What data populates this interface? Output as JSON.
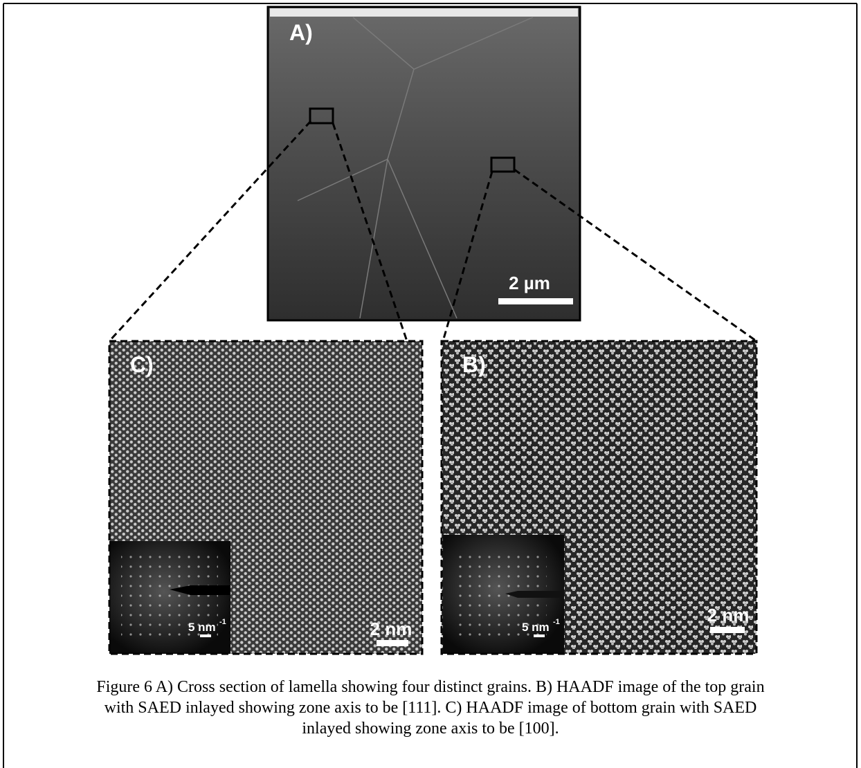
{
  "figure": {
    "panel_a": {
      "label": "A)",
      "scale_bar": "2 µm"
    },
    "panel_c": {
      "label": "C)",
      "scale_bar": "2 nm",
      "inset_scale_bar": "5 nm",
      "inset_scale_exponent": "-1"
    },
    "panel_b": {
      "label": "B)",
      "scale_bar": "2 nm",
      "inset_scale_bar": "5 nm",
      "inset_scale_exponent": "-1"
    },
    "caption_lines": [
      "Figure 6 A) Cross section of lamella showing four distinct grains. B) HAADF image of the top grain",
      "with SAED inlayed showing zone axis to be [111]. C) HAADF image of bottom grain with SAED",
      "inlayed showing zone axis to be [100]."
    ]
  }
}
